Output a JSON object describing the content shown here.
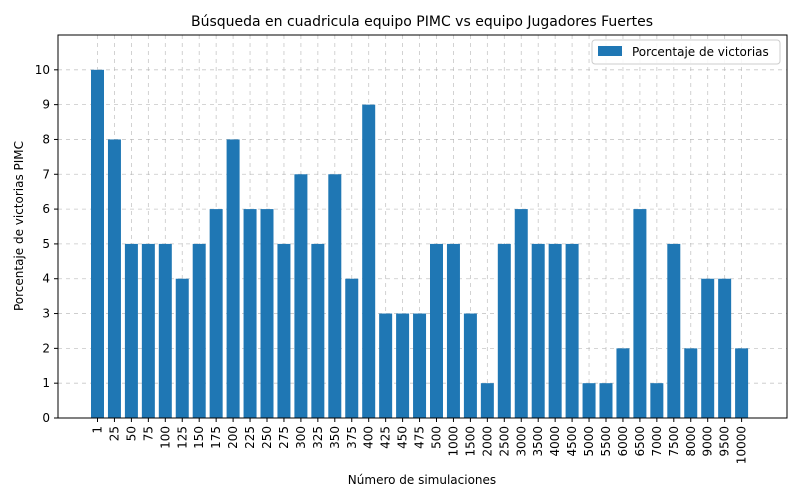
{
  "chart_data": {
    "type": "bar",
    "title": "Búsqueda en cuadricula equipo PIMC vs equipo Jugadores Fuertes",
    "xlabel": "Número de simulaciones",
    "ylabel": "Porcentaje de victorias PIMC",
    "categories": [
      "1",
      "25",
      "50",
      "75",
      "100",
      "125",
      "150",
      "175",
      "200",
      "225",
      "250",
      "275",
      "300",
      "325",
      "350",
      "375",
      "400",
      "425",
      "450",
      "475",
      "500",
      "1000",
      "1500",
      "2000",
      "2500",
      "3000",
      "3500",
      "4000",
      "4500",
      "5000",
      "5500",
      "6000",
      "6500",
      "7000",
      "7500",
      "8000",
      "9000",
      "9500",
      "10000"
    ],
    "series": [
      {
        "name": "Porcentaje de victorias",
        "color": "#1f77b4",
        "values": [
          10,
          8,
          5,
          5,
          5,
          4,
          5,
          6,
          8,
          6,
          6,
          5,
          7,
          5,
          7,
          4,
          9,
          3,
          3,
          3,
          5,
          5,
          3,
          1,
          5,
          6,
          5,
          5,
          5,
          1,
          1,
          2,
          6,
          1,
          5,
          2,
          4,
          4,
          2
        ]
      }
    ],
    "ylim": [
      0,
      11
    ],
    "yticks": [
      0,
      1,
      2,
      3,
      4,
      5,
      6,
      7,
      8,
      9,
      10
    ],
    "grid": true,
    "legend_position": "top-right"
  }
}
